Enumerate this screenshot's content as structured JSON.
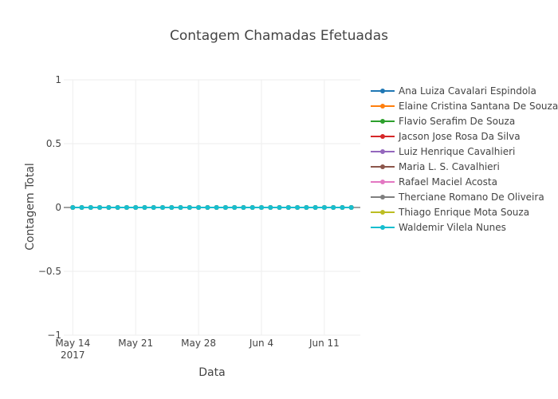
{
  "chart_data": {
    "type": "line",
    "title": "Contagem Chamadas Efetuadas",
    "xlabel": "Data",
    "ylabel": "Contagem Total",
    "ylim": [
      -1,
      1
    ],
    "yticks": [
      {
        "value": 1,
        "label": "1"
      },
      {
        "value": 0.5,
        "label": "0.5"
      },
      {
        "value": 0,
        "label": "0"
      },
      {
        "value": -0.5,
        "label": "−0.5"
      },
      {
        "value": -1,
        "label": "−1"
      }
    ],
    "xrange": [
      "2017-05-13",
      "2017-06-15"
    ],
    "xticks": [
      {
        "date": "2017-05-14",
        "label": "May 14",
        "sublabel": "2017"
      },
      {
        "date": "2017-05-21",
        "label": "May 21",
        "sublabel": ""
      },
      {
        "date": "2017-05-28",
        "label": "May 28",
        "sublabel": ""
      },
      {
        "date": "2017-06-04",
        "label": "Jun 4",
        "sublabel": ""
      },
      {
        "date": "2017-06-11",
        "label": "Jun 11",
        "sublabel": ""
      }
    ],
    "x": [
      "2017-05-14",
      "2017-05-15",
      "2017-05-16",
      "2017-05-17",
      "2017-05-18",
      "2017-05-19",
      "2017-05-20",
      "2017-05-21",
      "2017-05-22",
      "2017-05-23",
      "2017-05-24",
      "2017-05-25",
      "2017-05-26",
      "2017-05-27",
      "2017-05-28",
      "2017-05-29",
      "2017-05-30",
      "2017-05-31",
      "2017-06-01",
      "2017-06-02",
      "2017-06-03",
      "2017-06-04",
      "2017-06-05",
      "2017-06-06",
      "2017-06-07",
      "2017-06-08",
      "2017-06-09",
      "2017-06-10",
      "2017-06-11",
      "2017-06-12",
      "2017-06-13",
      "2017-06-14"
    ],
    "series": [
      {
        "name": "Ana Luiza Cavalari Espindola",
        "color": "#1f77b4",
        "values": [
          0,
          0,
          0,
          0,
          0,
          0,
          0,
          0,
          0,
          0,
          0,
          0,
          0,
          0,
          0,
          0,
          0,
          0,
          0,
          0,
          0,
          0,
          0,
          0,
          0,
          0,
          0,
          0,
          0,
          0,
          0,
          0
        ]
      },
      {
        "name": "Elaine Cristina Santana De Souza",
        "color": "#ff7f0e",
        "values": [
          0,
          0,
          0,
          0,
          0,
          0,
          0,
          0,
          0,
          0,
          0,
          0,
          0,
          0,
          0,
          0,
          0,
          0,
          0,
          0,
          0,
          0,
          0,
          0,
          0,
          0,
          0,
          0,
          0,
          0,
          0,
          0
        ]
      },
      {
        "name": "Flavio Serafim De Souza",
        "color": "#2ca02c",
        "values": [
          0,
          0,
          0,
          0,
          0,
          0,
          0,
          0,
          0,
          0,
          0,
          0,
          0,
          0,
          0,
          0,
          0,
          0,
          0,
          0,
          0,
          0,
          0,
          0,
          0,
          0,
          0,
          0,
          0,
          0,
          0,
          0
        ]
      },
      {
        "name": "Jacson Jose Rosa Da Silva",
        "color": "#d62728",
        "values": [
          0,
          0,
          0,
          0,
          0,
          0,
          0,
          0,
          0,
          0,
          0,
          0,
          0,
          0,
          0,
          0,
          0,
          0,
          0,
          0,
          0,
          0,
          0,
          0,
          0,
          0,
          0,
          0,
          0,
          0,
          0,
          0
        ]
      },
      {
        "name": "Luiz Henrique Cavalhieri",
        "color": "#9467bd",
        "values": [
          0,
          0,
          0,
          0,
          0,
          0,
          0,
          0,
          0,
          0,
          0,
          0,
          0,
          0,
          0,
          0,
          0,
          0,
          0,
          0,
          0,
          0,
          0,
          0,
          0,
          0,
          0,
          0,
          0,
          0,
          0,
          0
        ]
      },
      {
        "name": "Maria L. S. Cavalhieri",
        "color": "#8c564b",
        "values": [
          0,
          0,
          0,
          0,
          0,
          0,
          0,
          0,
          0,
          0,
          0,
          0,
          0,
          0,
          0,
          0,
          0,
          0,
          0,
          0,
          0,
          0,
          0,
          0,
          0,
          0,
          0,
          0,
          0,
          0,
          0,
          0
        ]
      },
      {
        "name": "Rafael Maciel Acosta",
        "color": "#e377c2",
        "values": [
          0,
          0,
          0,
          0,
          0,
          0,
          0,
          0,
          0,
          0,
          0,
          0,
          0,
          0,
          0,
          0,
          0,
          0,
          0,
          0,
          0,
          0,
          0,
          0,
          0,
          0,
          0,
          0,
          0,
          0,
          0,
          0
        ]
      },
      {
        "name": "Therciane Romano De Oliveira",
        "color": "#7f7f7f",
        "values": [
          0,
          0,
          0,
          0,
          0,
          0,
          0,
          0,
          0,
          0,
          0,
          0,
          0,
          0,
          0,
          0,
          0,
          0,
          0,
          0,
          0,
          0,
          0,
          0,
          0,
          0,
          0,
          0,
          0,
          0,
          0,
          0
        ]
      },
      {
        "name": "Thiago Enrique Mota Souza",
        "color": "#bcbd22",
        "values": [
          0,
          0,
          0,
          0,
          0,
          0,
          0,
          0,
          0,
          0,
          0,
          0,
          0,
          0,
          0,
          0,
          0,
          0,
          0,
          0,
          0,
          0,
          0,
          0,
          0,
          0,
          0,
          0,
          0,
          0,
          0,
          0
        ]
      },
      {
        "name": "Waldemir Vilela Nunes",
        "color": "#17becf",
        "values": [
          0,
          0,
          0,
          0,
          0,
          0,
          0,
          0,
          0,
          0,
          0,
          0,
          0,
          0,
          0,
          0,
          0,
          0,
          0,
          0,
          0,
          0,
          0,
          0,
          0,
          0,
          0,
          0,
          0,
          0,
          0,
          0
        ]
      }
    ],
    "grid": true,
    "legend": "right"
  }
}
